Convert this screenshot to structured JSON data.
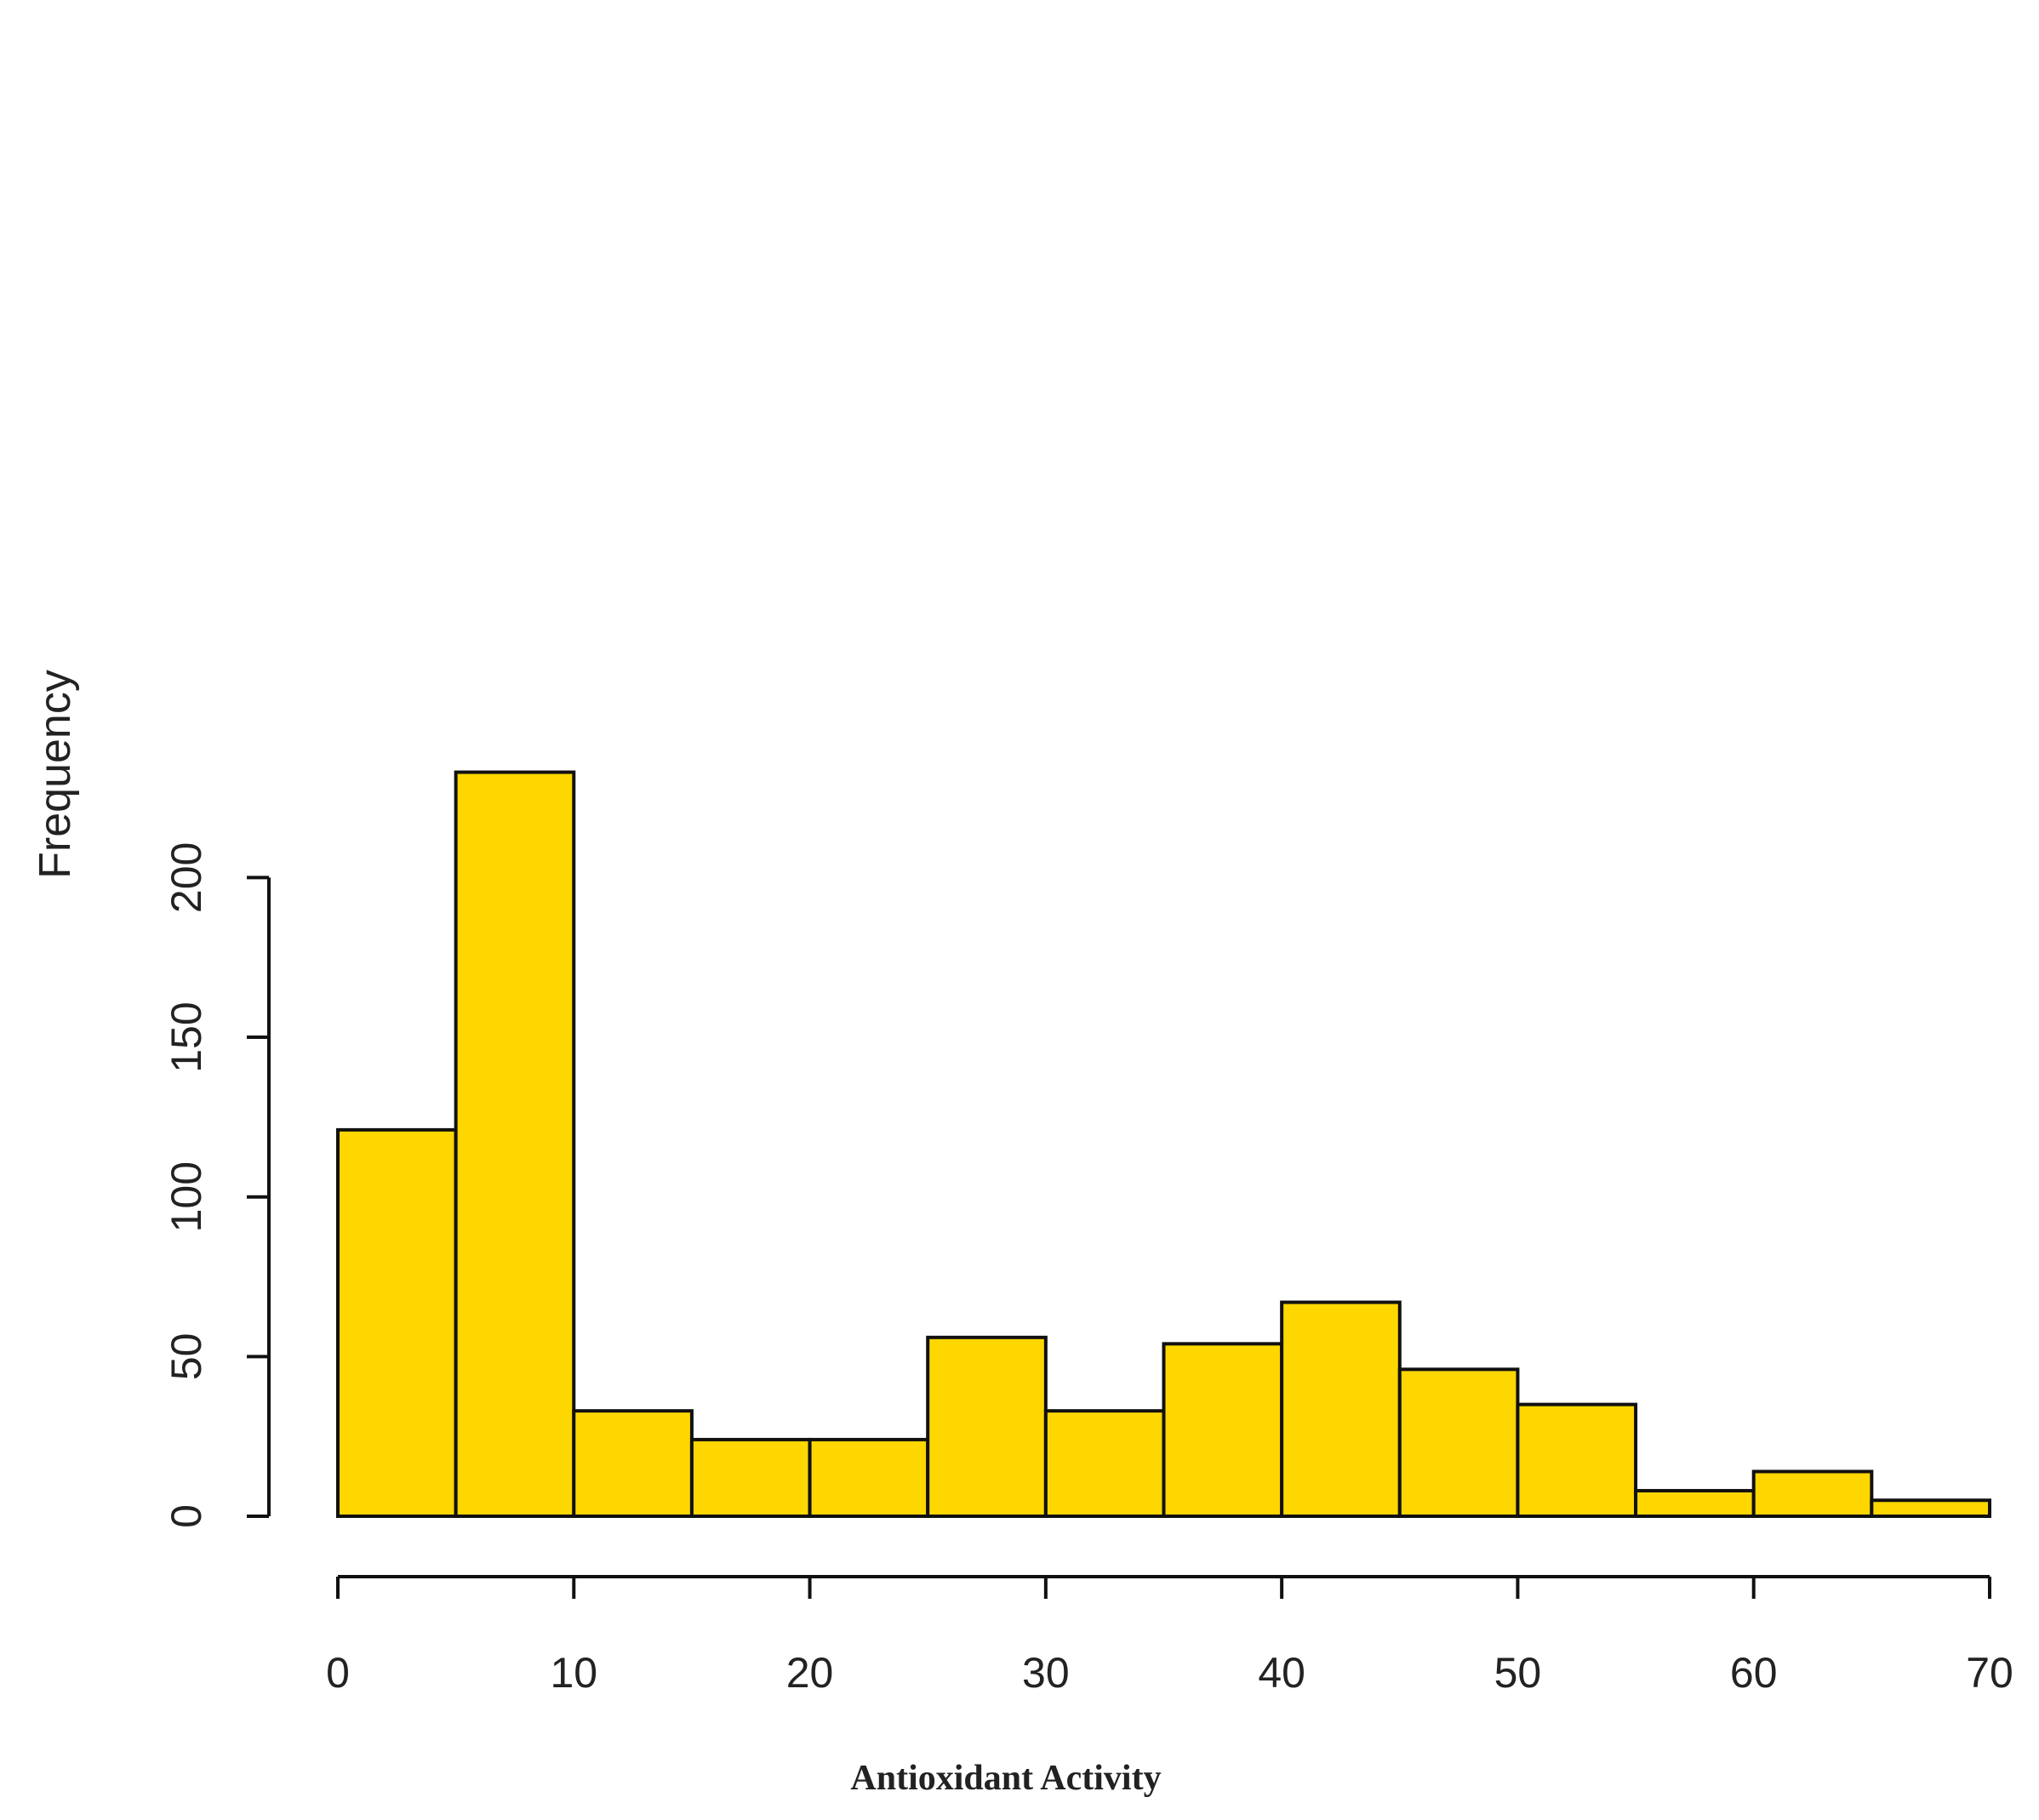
{
  "chart_data": {
    "type": "bar",
    "subtype": "histogram",
    "bin_edges": [
      0,
      5,
      10,
      15,
      20,
      25,
      30,
      35,
      40,
      45,
      50,
      55,
      60,
      65,
      70
    ],
    "values": [
      121,
      233,
      33,
      24,
      24,
      56,
      33,
      54,
      67,
      46,
      35,
      8,
      14,
      5
    ],
    "title": "",
    "xlabel": "Antioxidant Activity",
    "ylabel": "Frequency",
    "xlim": [
      0,
      70
    ],
    "ylim": [
      0,
      233
    ],
    "x_ticks": [
      "0",
      "10",
      "20",
      "30",
      "40",
      "50",
      "60",
      "70"
    ],
    "y_ticks": [
      "0",
      "50",
      "100",
      "150",
      "200"
    ],
    "bar_color": "#FFD700",
    "edge_color": "#111111",
    "grid": false,
    "legend": "none"
  }
}
